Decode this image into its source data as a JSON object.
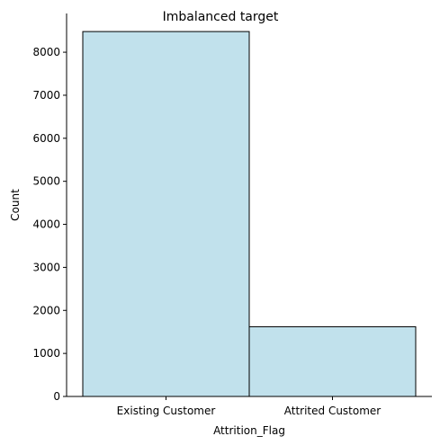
{
  "chart_data": {
    "type": "bar",
    "title": "Imbalanced target",
    "xlabel": "Attrition_Flag",
    "ylabel": "Count",
    "categories": [
      "Existing Customer",
      "Attrited Customer"
    ],
    "values": [
      8480,
      1620
    ],
    "ylim": [
      0,
      8900
    ],
    "yticks": [
      0,
      1000,
      2000,
      3000,
      4000,
      5000,
      6000,
      7000,
      8000
    ],
    "grid": false,
    "legend": "none",
    "bar_color": "#c1e1ec",
    "bar_edge_color": "#000000"
  }
}
